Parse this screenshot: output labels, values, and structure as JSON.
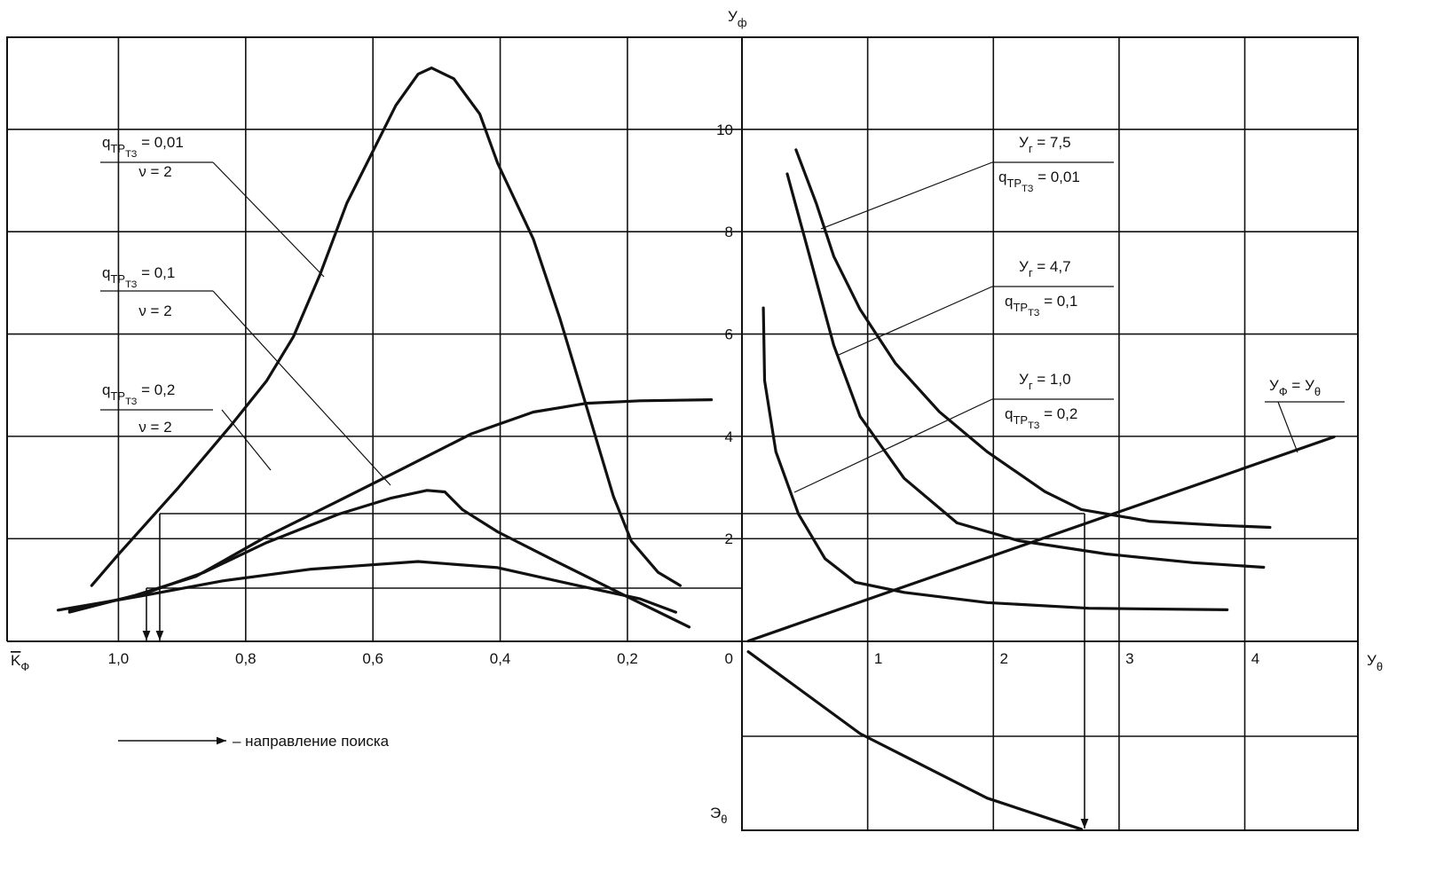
{
  "chart_data": [
    {
      "type": "line",
      "x_label": [
        {
          "text": "K"
        },
        {
          "sub": "Ф"
        }
      ],
      "xlim": [
        1.175,
        0.02
      ],
      "ylim": [
        0,
        11.8
      ],
      "xticks": [
        {
          "value": 1.0,
          "label": "1,0"
        },
        {
          "value": 0.8,
          "label": "0,8"
        },
        {
          "value": 0.6,
          "label": "0,6"
        },
        {
          "value": 0.4,
          "label": "0,4"
        },
        {
          "value": 0.2,
          "label": "0,2"
        }
      ],
      "grid": true,
      "color": "#111111",
      "series": [
        {
          "x": [
            1.042,
            1.0,
            0.906,
            0.823,
            0.767,
            0.725,
            0.683,
            0.641,
            0.599,
            0.564,
            0.529,
            0.508,
            0.473,
            0.432,
            0.404,
            0.348,
            0.306,
            0.264,
            0.222,
            0.194,
            0.152,
            0.117
          ],
          "values": [
            1.09,
            1.7,
            3.0,
            4.22,
            5.09,
            5.95,
            7.17,
            8.56,
            9.6,
            10.47,
            11.08,
            11.2,
            10.99,
            10.3,
            9.34,
            7.86,
            6.3,
            4.57,
            2.83,
            1.96,
            1.35,
            1.09
          ]
        },
        {
          "x": [
            1.077,
            0.976,
            0.878,
            0.767,
            0.655,
            0.557,
            0.446,
            0.348,
            0.264,
            0.18,
            0.068
          ],
          "values": [
            0.57,
            0.89,
            1.27,
            2.05,
            2.74,
            3.35,
            4.05,
            4.48,
            4.65,
            4.7,
            4.72
          ]
        },
        {
          "x": [
            1.077,
            0.962,
            0.865,
            0.767,
            0.655,
            0.571,
            0.515,
            0.487,
            0.459,
            0.404,
            0.32,
            0.208,
            0.103
          ],
          "values": [
            0.61,
            0.92,
            1.35,
            1.93,
            2.48,
            2.8,
            2.95,
            2.92,
            2.57,
            2.14,
            1.61,
            0.92,
            0.28
          ]
        },
        {
          "x": [
            1.095,
            0.962,
            0.837,
            0.697,
            0.529,
            0.404,
            0.278,
            0.18,
            0.124
          ],
          "values": [
            0.61,
            0.89,
            1.18,
            1.41,
            1.56,
            1.44,
            1.09,
            0.83,
            0.57
          ]
        }
      ],
      "annotations": [
        {
          "runs": [
            {
              "text": "q"
            },
            {
              "sub": "ТР"
            },
            {
              "subsub": "ТЗ"
            },
            {
              "text": " = 0,01"
            }
          ],
          "line2": "ν = 2"
        },
        {
          "runs": [
            {
              "text": "q"
            },
            {
              "sub": "ТР"
            },
            {
              "subsub": "ТЗ"
            },
            {
              "text": " = 0,1"
            }
          ],
          "line2": "ν = 2"
        },
        {
          "runs": [
            {
              "text": "q"
            },
            {
              "sub": "ТР"
            },
            {
              "subsub": "ТЗ"
            },
            {
              "text": " = 0,2"
            }
          ],
          "line2": "ν = 2"
        }
      ],
      "legend_text": "– направление поиска"
    },
    {
      "type": "line",
      "x_label": [
        {
          "text": "У"
        },
        {
          "sub": "θ"
        }
      ],
      "y_label": [
        {
          "text": "У"
        },
        {
          "sub": "ф"
        }
      ],
      "y_label_lower": [
        {
          "text": "Э"
        },
        {
          "sub": "θ"
        }
      ],
      "xlim": [
        0,
        4.9
      ],
      "ylim": [
        -3.7,
        11.8
      ],
      "xticks": [
        0,
        1,
        2,
        3,
        4
      ],
      "yticks": [
        2,
        4,
        6,
        8,
        10
      ],
      "grid": true,
      "color": "#111111",
      "series": [
        {
          "x": [
            0.43,
            0.59,
            0.73,
            0.94,
            1.22,
            1.57,
            1.95,
            2.41,
            2.7,
            3.24,
            3.8,
            4.2
          ],
          "values": [
            9.6,
            8.56,
            7.52,
            6.48,
            5.43,
            4.48,
            3.7,
            2.92,
            2.57,
            2.34,
            2.26,
            2.22
          ]
        },
        {
          "x": [
            0.36,
            0.52,
            0.73,
            0.94,
            1.29,
            1.71,
            2.2,
            2.9,
            3.59,
            4.15
          ],
          "values": [
            9.13,
            7.69,
            5.78,
            4.39,
            3.18,
            2.31,
            1.96,
            1.7,
            1.53,
            1.44
          ]
        },
        {
          "x": [
            0.17,
            0.18,
            0.27,
            0.45,
            0.66,
            0.9,
            1.29,
            1.95,
            2.76,
            3.86
          ],
          "values": [
            6.51,
            5.09,
            3.7,
            2.48,
            1.61,
            1.15,
            0.95,
            0.75,
            0.64,
            0.61
          ]
        },
        {
          "x": [
            0.05,
            4.71
          ],
          "values": [
            0,
            3.99
          ]
        },
        {
          "x": [
            0.05,
            0.94,
            1.95,
            2.7
          ],
          "values": [
            -0.21,
            -1.81,
            -3.07,
            -3.68
          ]
        }
      ],
      "annotations": [
        {
          "runs": [
            {
              "text": "У"
            },
            {
              "sub": "г"
            },
            {
              "text": " = 7,5"
            }
          ],
          "line2": [
            {
              "text": "q"
            },
            {
              "sub": "ТР"
            },
            {
              "subsub": "ТЗ"
            },
            {
              "text": " = 0,01"
            }
          ]
        },
        {
          "runs": [
            {
              "text": "У"
            },
            {
              "sub": "г"
            },
            {
              "text": " = 4,7"
            }
          ],
          "line2": [
            {
              "text": "q"
            },
            {
              "sub": "ТР"
            },
            {
              "subsub": "ТЗ"
            },
            {
              "text": " = 0,1"
            }
          ]
        },
        {
          "runs": [
            {
              "text": "У"
            },
            {
              "sub": "г"
            },
            {
              "text": " = 1,0"
            }
          ],
          "line2": [
            {
              "text": "q"
            },
            {
              "sub": "ТР"
            },
            {
              "subsub": "ТЗ"
            },
            {
              "text": " = 0,2"
            }
          ]
        },
        {
          "runs": [
            {
              "text": "У"
            },
            {
              "sub": "Ф"
            },
            {
              "text": " = У"
            },
            {
              "sub": "θ"
            }
          ]
        }
      ]
    }
  ]
}
